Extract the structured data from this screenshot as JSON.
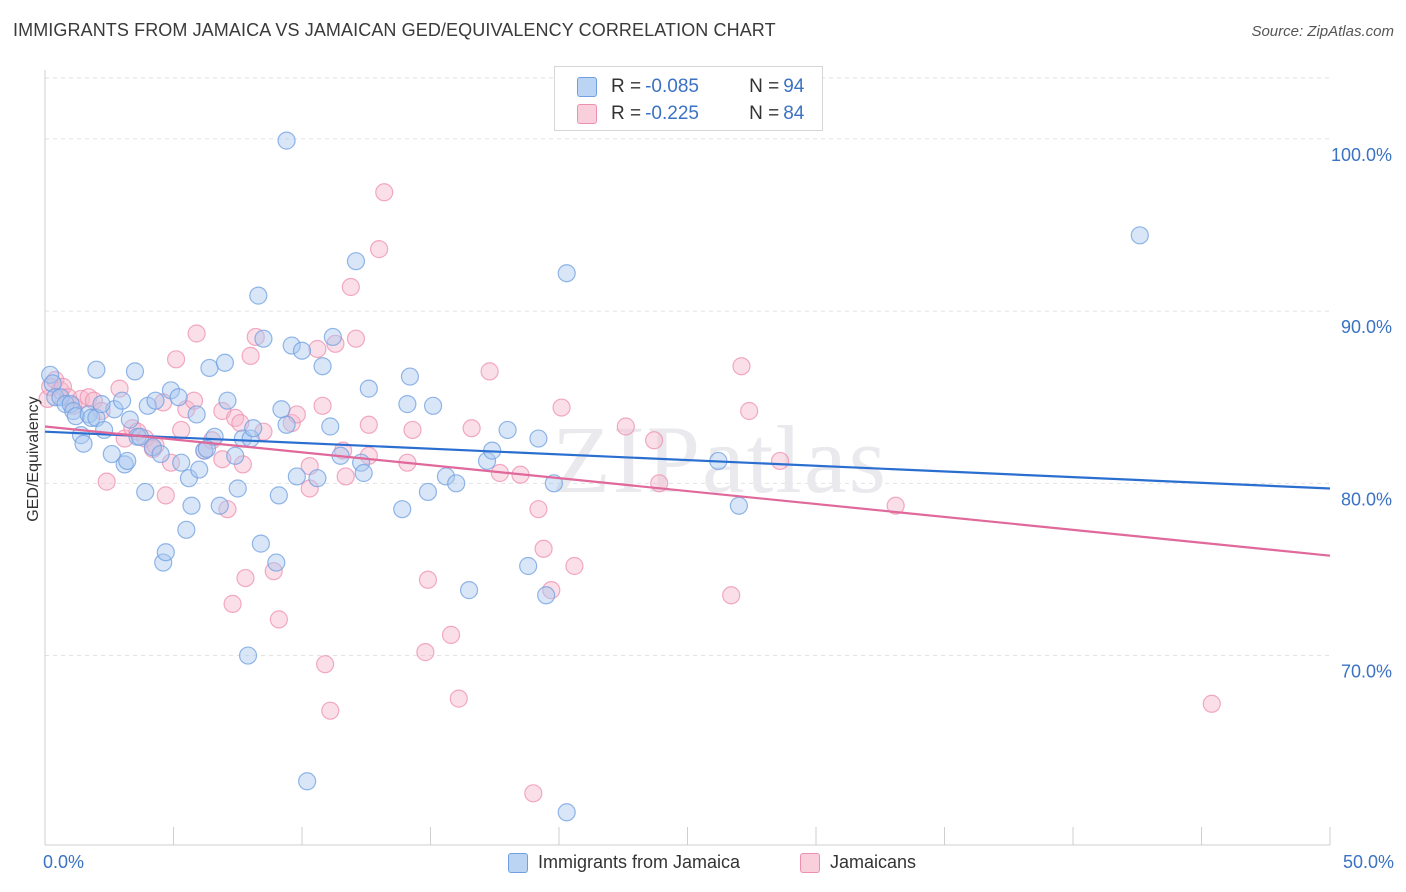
{
  "title": "IMMIGRANTS FROM JAMAICA VS JAMAICAN GED/EQUIVALENCY CORRELATION CHART",
  "source": "Source: ZipAtlas.com",
  "watermark": "ZIPatlas",
  "legend": {
    "rows": [
      {
        "r_label": "R = ",
        "r_value": "-0.085",
        "n_label": "N = ",
        "n_value": "94"
      },
      {
        "r_label": "R = ",
        "r_value": "-0.225",
        "n_label": "N = ",
        "n_value": "84"
      }
    ]
  },
  "colors": {
    "blue_fill": "#a9c8f0",
    "blue_stroke": "#6f9fe0",
    "blue_line": "#2a6fd0",
    "pink_fill": "#f6b9cd",
    "pink_stroke": "#ee8fb0",
    "pink_line": "#e0689a",
    "tick_text": "#3b72c4",
    "grid": "#e2e2e2"
  },
  "chart_data": {
    "type": "scatter",
    "title": "IMMIGRANTS FROM JAMAICA VS JAMAICAN GED/EQUIVALENCY CORRELATION CHART",
    "xlabel": "",
    "ylabel": "GED/Equivalency",
    "xlim": [
      0,
      50
    ],
    "ylim": [
      59,
      104
    ],
    "x_tick_labels": [
      "0.0%",
      "50.0%"
    ],
    "y_ticks": [
      70,
      80,
      90,
      100
    ],
    "y_tick_labels": [
      "70.0%",
      "80.0%",
      "90.0%",
      "100.0%"
    ],
    "grid": true,
    "legend_position": "bottom",
    "series": [
      {
        "name": "Immigrants from Jamaica",
        "color": "blue",
        "trend": {
          "x": [
            0,
            50
          ],
          "y": [
            83.0,
            79.7
          ]
        },
        "points": [
          [
            0.2,
            86.3
          ],
          [
            0.3,
            85.8
          ],
          [
            0.4,
            85.0
          ],
          [
            0.6,
            85.0
          ],
          [
            0.8,
            84.6
          ],
          [
            1.0,
            84.6
          ],
          [
            1.1,
            84.2
          ],
          [
            1.2,
            83.9
          ],
          [
            1.4,
            82.8
          ],
          [
            1.5,
            82.3
          ],
          [
            1.7,
            84.0
          ],
          [
            1.8,
            83.8
          ],
          [
            2.0,
            86.6
          ],
          [
            2.0,
            83.8
          ],
          [
            2.3,
            83.1
          ],
          [
            2.6,
            81.7
          ],
          [
            2.7,
            84.3
          ],
          [
            3.0,
            84.8
          ],
          [
            3.1,
            81.1
          ],
          [
            3.2,
            81.3
          ],
          [
            3.3,
            83.7
          ],
          [
            3.5,
            86.5
          ],
          [
            3.6,
            82.7
          ],
          [
            3.7,
            82.7
          ],
          [
            3.9,
            79.5
          ],
          [
            4.0,
            84.5
          ],
          [
            4.2,
            82.1
          ],
          [
            4.3,
            84.8
          ],
          [
            4.5,
            81.7
          ],
          [
            4.6,
            75.4
          ],
          [
            4.7,
            76.0
          ],
          [
            4.9,
            85.4
          ],
          [
            5.2,
            85.0
          ],
          [
            5.3,
            81.2
          ],
          [
            5.5,
            77.3
          ],
          [
            5.6,
            80.3
          ],
          [
            5.7,
            78.7
          ],
          [
            5.9,
            84.0
          ],
          [
            6.0,
            80.8
          ],
          [
            6.2,
            81.9
          ],
          [
            6.4,
            86.7
          ],
          [
            6.6,
            82.7
          ],
          [
            6.8,
            78.7
          ],
          [
            7.0,
            87.0
          ],
          [
            7.1,
            84.8
          ],
          [
            7.4,
            81.6
          ],
          [
            7.5,
            79.7
          ],
          [
            7.7,
            82.6
          ],
          [
            7.9,
            70.0
          ],
          [
            8.0,
            82.6
          ],
          [
            8.1,
            83.2
          ],
          [
            8.3,
            90.9
          ],
          [
            8.4,
            76.5
          ],
          [
            8.5,
            88.4
          ],
          [
            9.0,
            75.4
          ],
          [
            9.1,
            79.3
          ],
          [
            9.2,
            84.3
          ],
          [
            9.4,
            83.4
          ],
          [
            9.6,
            88.0
          ],
          [
            9.8,
            80.4
          ],
          [
            10.0,
            87.7
          ],
          [
            10.2,
            62.7
          ],
          [
            10.6,
            80.3
          ],
          [
            10.8,
            86.8
          ],
          [
            11.1,
            83.3
          ],
          [
            11.2,
            88.5
          ],
          [
            11.5,
            81.6
          ],
          [
            12.1,
            92.9
          ],
          [
            12.3,
            81.2
          ],
          [
            12.4,
            80.6
          ],
          [
            13.9,
            78.5
          ],
          [
            14.1,
            84.6
          ],
          [
            14.2,
            86.2
          ],
          [
            14.9,
            79.5
          ],
          [
            15.1,
            84.5
          ],
          [
            15.6,
            80.4
          ],
          [
            16.0,
            80.0
          ],
          [
            16.5,
            73.8
          ],
          [
            17.2,
            81.3
          ],
          [
            17.4,
            81.9
          ],
          [
            18.8,
            75.2
          ],
          [
            19.2,
            82.6
          ],
          [
            19.5,
            73.5
          ],
          [
            19.8,
            80.0
          ],
          [
            20.3,
            60.9
          ],
          [
            20.3,
            92.2
          ],
          [
            26.2,
            81.3
          ],
          [
            27.0,
            78.7
          ],
          [
            42.6,
            94.4
          ],
          [
            9.4,
            99.9
          ],
          [
            2.2,
            84.6
          ],
          [
            6.3,
            82.0
          ],
          [
            12.6,
            85.5
          ],
          [
            18.0,
            83.1
          ]
        ]
      },
      {
        "name": "Jamaicans",
        "color": "pink",
        "trend": {
          "x": [
            0,
            50
          ],
          "y": [
            83.3,
            75.8
          ]
        },
        "points": [
          [
            0.1,
            84.9
          ],
          [
            0.2,
            85.6
          ],
          [
            0.4,
            86.0
          ],
          [
            0.6,
            85.4
          ],
          [
            0.7,
            85.6
          ],
          [
            0.9,
            85.0
          ],
          [
            1.1,
            84.5
          ],
          [
            1.4,
            84.9
          ],
          [
            1.7,
            85.0
          ],
          [
            1.9,
            84.8
          ],
          [
            2.2,
            84.2
          ],
          [
            2.4,
            80.1
          ],
          [
            2.9,
            85.5
          ],
          [
            3.1,
            82.6
          ],
          [
            3.4,
            83.2
          ],
          [
            3.6,
            83.0
          ],
          [
            3.9,
            82.6
          ],
          [
            4.2,
            82.0
          ],
          [
            4.3,
            82.2
          ],
          [
            4.6,
            84.7
          ],
          [
            4.7,
            79.3
          ],
          [
            4.9,
            81.2
          ],
          [
            5.1,
            87.2
          ],
          [
            5.3,
            83.1
          ],
          [
            5.5,
            84.3
          ],
          [
            5.8,
            84.8
          ],
          [
            5.9,
            88.7
          ],
          [
            6.2,
            81.9
          ],
          [
            6.5,
            82.5
          ],
          [
            6.9,
            81.4
          ],
          [
            6.9,
            84.2
          ],
          [
            7.1,
            78.5
          ],
          [
            7.3,
            73.0
          ],
          [
            7.4,
            83.8
          ],
          [
            7.6,
            83.5
          ],
          [
            7.7,
            81.1
          ],
          [
            7.8,
            74.5
          ],
          [
            8.0,
            87.4
          ],
          [
            8.2,
            88.5
          ],
          [
            8.5,
            83.0
          ],
          [
            8.9,
            74.9
          ],
          [
            9.1,
            72.1
          ],
          [
            9.6,
            83.5
          ],
          [
            9.8,
            84.0
          ],
          [
            10.3,
            81.0
          ],
          [
            10.3,
            79.7
          ],
          [
            10.6,
            87.8
          ],
          [
            10.8,
            84.5
          ],
          [
            10.9,
            69.5
          ],
          [
            11.1,
            66.8
          ],
          [
            11.3,
            88.1
          ],
          [
            11.6,
            81.9
          ],
          [
            11.7,
            80.4
          ],
          [
            11.9,
            91.4
          ],
          [
            12.1,
            88.4
          ],
          [
            12.6,
            83.4
          ],
          [
            12.6,
            81.6
          ],
          [
            13.0,
            93.6
          ],
          [
            13.2,
            96.9
          ],
          [
            14.1,
            81.2
          ],
          [
            14.3,
            83.1
          ],
          [
            14.8,
            70.2
          ],
          [
            14.9,
            74.4
          ],
          [
            15.8,
            71.2
          ],
          [
            16.1,
            67.5
          ],
          [
            16.6,
            83.2
          ],
          [
            17.3,
            86.5
          ],
          [
            17.7,
            80.6
          ],
          [
            18.5,
            80.5
          ],
          [
            19.0,
            62.0
          ],
          [
            19.2,
            78.5
          ],
          [
            19.4,
            76.2
          ],
          [
            19.7,
            73.8
          ],
          [
            20.1,
            84.4
          ],
          [
            20.6,
            75.2
          ],
          [
            22.6,
            83.3
          ],
          [
            23.7,
            82.5
          ],
          [
            23.9,
            80.0
          ],
          [
            26.7,
            73.5
          ],
          [
            27.1,
            86.8
          ],
          [
            27.4,
            84.2
          ],
          [
            28.6,
            81.3
          ],
          [
            33.1,
            78.7
          ],
          [
            45.4,
            67.2
          ]
        ]
      }
    ]
  },
  "bottom_legend": {
    "blue_label": "Immigrants from Jamaica",
    "pink_label": "Jamaicans"
  }
}
